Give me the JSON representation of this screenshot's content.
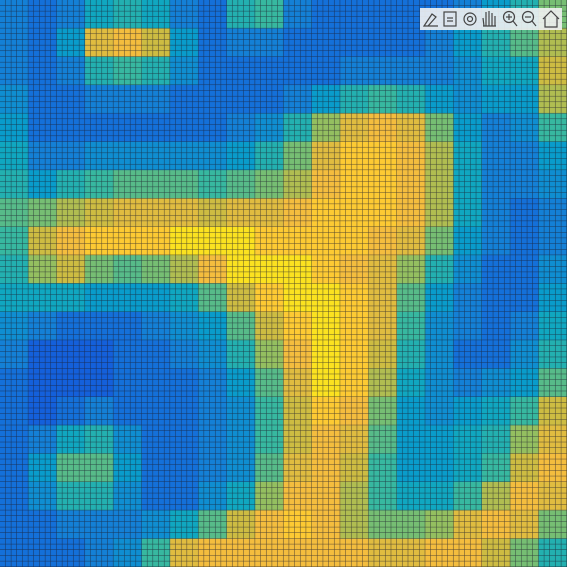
{
  "chart_data": {
    "type": "heatmap",
    "colormap": "parula",
    "clim": [
      0,
      1
    ],
    "z": [
      [
        0.25,
        0.2,
        0.25,
        0.4,
        0.45,
        0.4,
        0.25,
        0.2,
        0.45,
        0.5,
        0.25,
        0.2,
        0.2,
        0.2,
        0.2,
        0.2,
        0.25,
        0.35,
        0.45,
        0.6
      ],
      [
        0.25,
        0.2,
        0.35,
        0.8,
        0.85,
        0.75,
        0.35,
        0.2,
        0.25,
        0.25,
        0.2,
        0.2,
        0.2,
        0.2,
        0.2,
        0.25,
        0.35,
        0.45,
        0.55,
        0.7
      ],
      [
        0.25,
        0.2,
        0.25,
        0.45,
        0.5,
        0.45,
        0.3,
        0.2,
        0.2,
        0.2,
        0.2,
        0.2,
        0.25,
        0.25,
        0.25,
        0.25,
        0.3,
        0.4,
        0.4,
        0.75
      ],
      [
        0.3,
        0.2,
        0.2,
        0.25,
        0.25,
        0.25,
        0.2,
        0.2,
        0.2,
        0.2,
        0.25,
        0.35,
        0.45,
        0.5,
        0.45,
        0.35,
        0.3,
        0.35,
        0.35,
        0.7
      ],
      [
        0.35,
        0.2,
        0.2,
        0.2,
        0.2,
        0.2,
        0.2,
        0.2,
        0.25,
        0.3,
        0.45,
        0.65,
        0.8,
        0.85,
        0.8,
        0.6,
        0.35,
        0.25,
        0.3,
        0.5
      ],
      [
        0.4,
        0.25,
        0.25,
        0.3,
        0.3,
        0.3,
        0.3,
        0.3,
        0.35,
        0.45,
        0.6,
        0.8,
        0.9,
        0.9,
        0.85,
        0.7,
        0.4,
        0.25,
        0.25,
        0.35
      ],
      [
        0.45,
        0.35,
        0.45,
        0.5,
        0.55,
        0.55,
        0.55,
        0.5,
        0.55,
        0.6,
        0.7,
        0.85,
        0.9,
        0.9,
        0.85,
        0.7,
        0.4,
        0.25,
        0.25,
        0.3
      ],
      [
        0.55,
        0.6,
        0.7,
        0.75,
        0.8,
        0.8,
        0.8,
        0.75,
        0.8,
        0.8,
        0.85,
        0.9,
        0.9,
        0.9,
        0.85,
        0.7,
        0.4,
        0.25,
        0.2,
        0.25
      ],
      [
        0.5,
        0.75,
        0.85,
        0.9,
        0.9,
        0.9,
        0.95,
        0.95,
        0.95,
        0.9,
        0.9,
        0.9,
        0.9,
        0.85,
        0.8,
        0.6,
        0.35,
        0.25,
        0.2,
        0.25
      ],
      [
        0.45,
        0.65,
        0.75,
        0.6,
        0.55,
        0.6,
        0.7,
        0.85,
        0.95,
        0.95,
        0.95,
        0.9,
        0.85,
        0.8,
        0.65,
        0.45,
        0.3,
        0.2,
        0.2,
        0.3
      ],
      [
        0.4,
        0.4,
        0.4,
        0.35,
        0.35,
        0.35,
        0.4,
        0.55,
        0.75,
        0.9,
        0.95,
        0.95,
        0.9,
        0.8,
        0.55,
        0.35,
        0.25,
        0.2,
        0.2,
        0.35
      ],
      [
        0.3,
        0.25,
        0.2,
        0.2,
        0.2,
        0.25,
        0.3,
        0.35,
        0.55,
        0.75,
        0.9,
        0.95,
        0.9,
        0.8,
        0.5,
        0.3,
        0.25,
        0.2,
        0.25,
        0.4
      ],
      [
        0.25,
        0.15,
        0.15,
        0.15,
        0.2,
        0.2,
        0.25,
        0.3,
        0.45,
        0.65,
        0.85,
        0.95,
        0.9,
        0.75,
        0.45,
        0.3,
        0.2,
        0.2,
        0.3,
        0.45
      ],
      [
        0.2,
        0.15,
        0.15,
        0.15,
        0.2,
        0.2,
        0.2,
        0.25,
        0.35,
        0.55,
        0.8,
        0.95,
        0.9,
        0.7,
        0.4,
        0.3,
        0.25,
        0.3,
        0.35,
        0.55
      ],
      [
        0.2,
        0.15,
        0.2,
        0.25,
        0.2,
        0.2,
        0.2,
        0.25,
        0.3,
        0.5,
        0.75,
        0.9,
        0.85,
        0.6,
        0.35,
        0.3,
        0.35,
        0.4,
        0.5,
        0.75
      ],
      [
        0.2,
        0.25,
        0.4,
        0.45,
        0.3,
        0.2,
        0.2,
        0.25,
        0.3,
        0.5,
        0.75,
        0.85,
        0.8,
        0.55,
        0.35,
        0.35,
        0.4,
        0.45,
        0.65,
        0.8
      ],
      [
        0.2,
        0.35,
        0.55,
        0.55,
        0.35,
        0.2,
        0.2,
        0.25,
        0.3,
        0.55,
        0.8,
        0.85,
        0.75,
        0.5,
        0.35,
        0.35,
        0.4,
        0.5,
        0.75,
        0.85
      ],
      [
        0.2,
        0.3,
        0.45,
        0.45,
        0.3,
        0.2,
        0.2,
        0.3,
        0.4,
        0.65,
        0.85,
        0.85,
        0.7,
        0.5,
        0.4,
        0.4,
        0.5,
        0.7,
        0.85,
        0.8
      ],
      [
        0.2,
        0.2,
        0.25,
        0.25,
        0.25,
        0.3,
        0.4,
        0.55,
        0.75,
        0.85,
        0.9,
        0.85,
        0.7,
        0.6,
        0.6,
        0.65,
        0.8,
        0.85,
        0.8,
        0.6
      ],
      [
        0.2,
        0.2,
        0.2,
        0.25,
        0.3,
        0.5,
        0.8,
        0.85,
        0.85,
        0.85,
        0.85,
        0.85,
        0.85,
        0.8,
        0.8,
        0.85,
        0.85,
        0.75,
        0.6,
        0.45
      ]
    ]
  }
}
